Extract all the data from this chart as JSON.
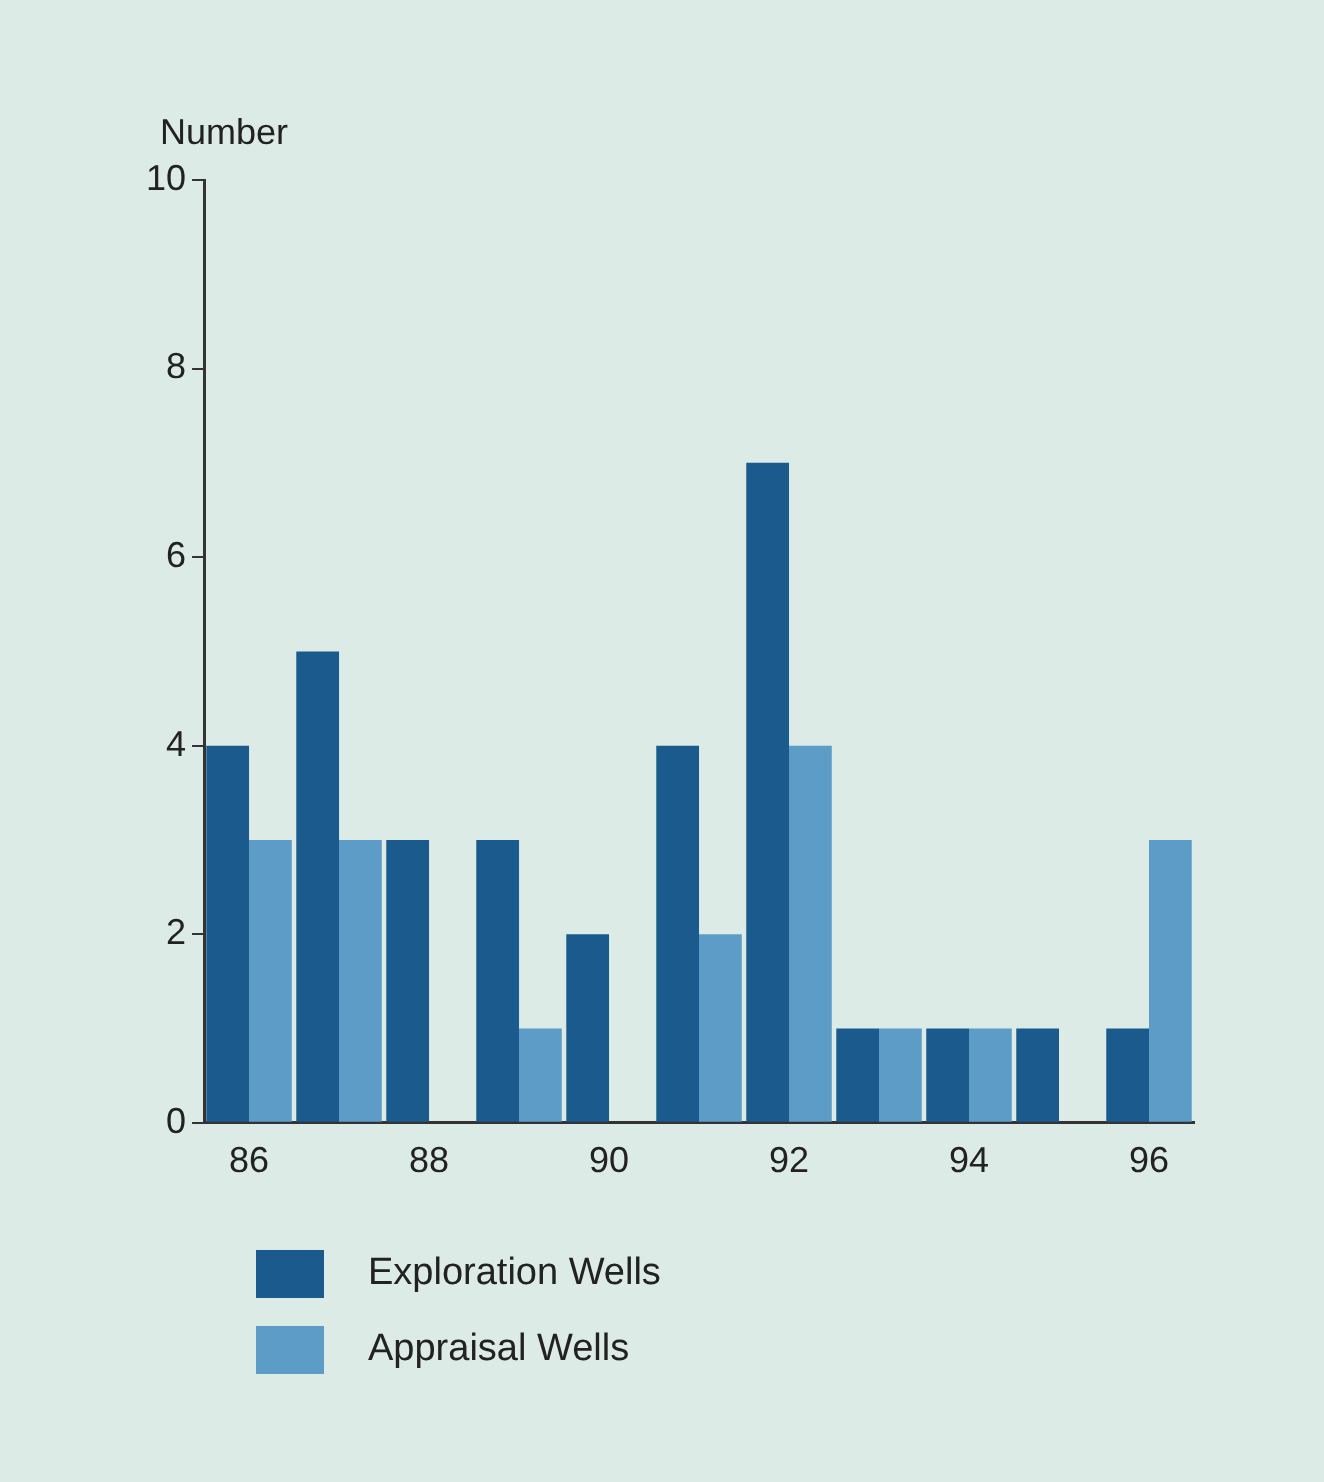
{
  "chart_data": {
    "type": "bar",
    "ylabel": "Number",
    "categories": [
      "86",
      null,
      "88",
      null,
      "90",
      null,
      "92",
      null,
      "94",
      null,
      "96"
    ],
    "series": [
      {
        "name": "Exploration Wells",
        "color": "#1a5a8c",
        "values": [
          4,
          5,
          3,
          3,
          2,
          4,
          7,
          1,
          1,
          1,
          1
        ]
      },
      {
        "name": "Appraisal Wells",
        "color": "#5c9cc6",
        "values": [
          3,
          3,
          0,
          1,
          0,
          2,
          4,
          1,
          1,
          0,
          3
        ]
      }
    ],
    "ylim": [
      0,
      10
    ],
    "yticks": [
      0,
      2,
      4,
      6,
      8,
      10
    ],
    "grid": false,
    "legend": "bottom left"
  }
}
